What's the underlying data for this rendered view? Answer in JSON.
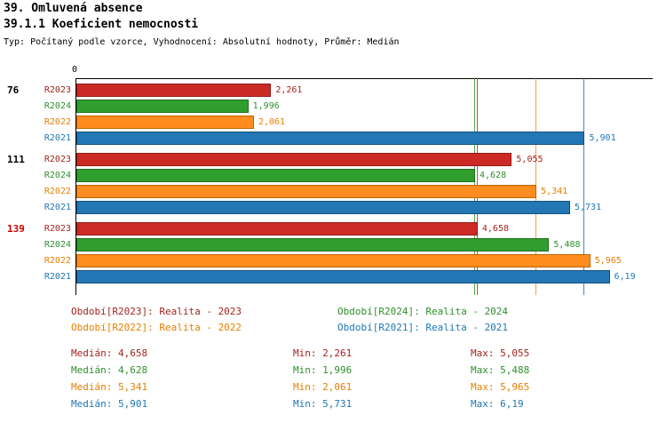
{
  "header": {
    "title": "39. Omluvená absence",
    "subtitle": "39.1.1 Koeficient nemocnosti",
    "meta": "Typ: Počítaný podle vzorce, Vyhodnocení: Absolutní hodnoty, Průměr: Medián"
  },
  "colors": {
    "R2023": {
      "bar": "#cc2a25",
      "border": "#8f1d1a",
      "text": "#a42420"
    },
    "R2024": {
      "bar": "#2f9e2f",
      "border": "#1f6f1f",
      "text": "#2f8f2f"
    },
    "R2022": {
      "bar": "#ff8c1e",
      "border": "#c26400",
      "text": "#e87e00"
    },
    "R2021": {
      "bar": "#2277b4",
      "border": "#15517c",
      "text": "#1f77b4"
    }
  },
  "group_highlight_color": "#cc0000",
  "chart_data": {
    "type": "bar",
    "orientation": "horizontal",
    "xlim": [
      0,
      6.7
    ],
    "axis_origin_label": "0",
    "series_order": [
      "R2023",
      "R2024",
      "R2022",
      "R2021"
    ],
    "groups": [
      {
        "label": "76",
        "highlight": false,
        "bars": [
          {
            "series": "R2023",
            "value": 2.261,
            "display": "2,261"
          },
          {
            "series": "R2024",
            "value": 1.996,
            "display": "1,996"
          },
          {
            "series": "R2022",
            "value": 2.061,
            "display": "2,061"
          },
          {
            "series": "R2021",
            "value": 5.901,
            "display": "5,901"
          }
        ]
      },
      {
        "label": "111",
        "highlight": false,
        "bars": [
          {
            "series": "R2023",
            "value": 5.055,
            "display": "5,055"
          },
          {
            "series": "R2024",
            "value": 4.628,
            "display": "4,628"
          },
          {
            "series": "R2022",
            "value": 5.341,
            "display": "5,341"
          },
          {
            "series": "R2021",
            "value": 5.731,
            "display": "5,731"
          }
        ]
      },
      {
        "label": "139",
        "highlight": true,
        "bars": [
          {
            "series": "R2023",
            "value": 4.658,
            "display": "4,658"
          },
          {
            "series": "R2024",
            "value": 5.488,
            "display": "5,488"
          },
          {
            "series": "R2022",
            "value": 5.965,
            "display": "5,965"
          },
          {
            "series": "R2021",
            "value": 6.19,
            "display": "6,19"
          }
        ]
      }
    ],
    "median_lines": {
      "R2023": 4.658,
      "R2024": 4.628,
      "R2022": 5.341,
      "R2021": 5.901
    }
  },
  "legend": [
    {
      "series": "R2023",
      "label": "Období[R2023]: Realita - 2023"
    },
    {
      "series": "R2024",
      "label": "Období[R2024]: Realita - 2024"
    },
    {
      "series": "R2022",
      "label": "Období[R2022]: Realita - 2022"
    },
    {
      "series": "R2021",
      "label": "Období[R2021]: Realita - 2021"
    }
  ],
  "stats": [
    {
      "series": "R2023",
      "median": "Medián: 4,658",
      "min": "Min: 2,261",
      "max": "Max: 5,055"
    },
    {
      "series": "R2024",
      "median": "Medián: 4,628",
      "min": "Min: 1,996",
      "max": "Max: 5,488"
    },
    {
      "series": "R2022",
      "median": "Medián: 5,341",
      "min": "Min: 2,061",
      "max": "Max: 5,965"
    },
    {
      "series": "R2021",
      "median": "Medián: 5,901",
      "min": "Min: 5,731",
      "max": "Max: 6,19"
    }
  ]
}
